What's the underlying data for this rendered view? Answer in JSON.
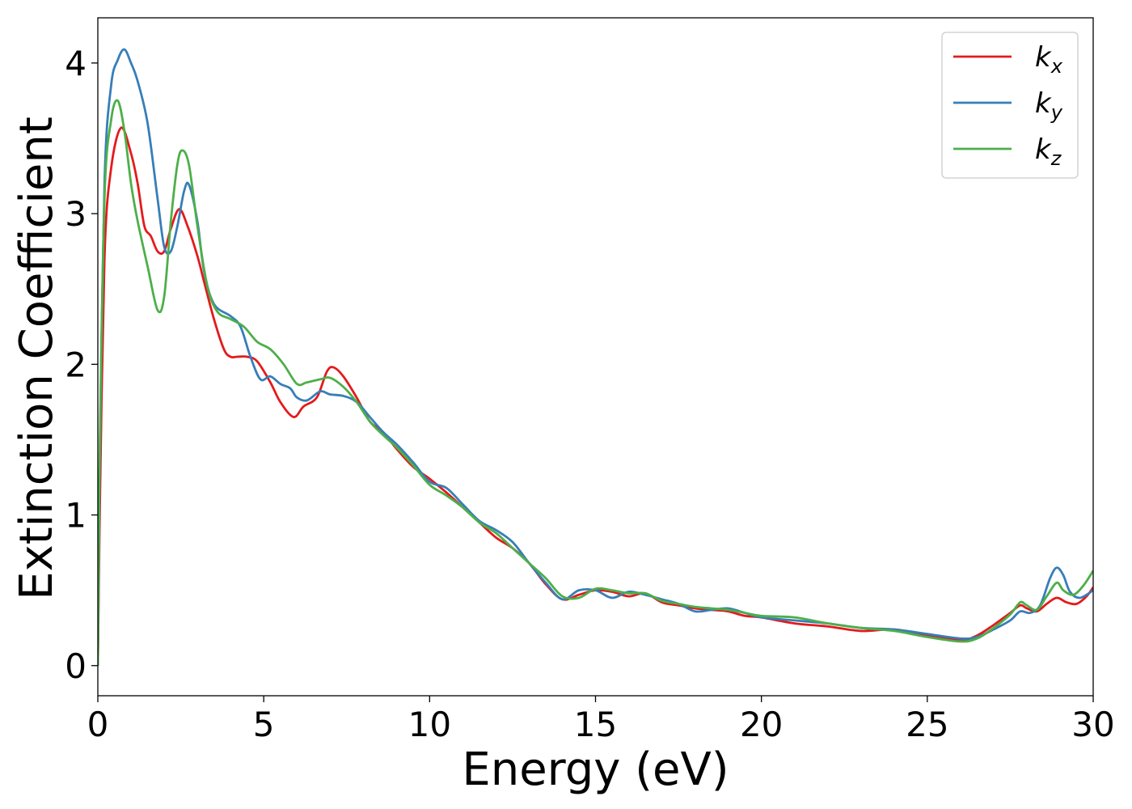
{
  "chart_data": {
    "type": "line",
    "xlabel": "Energy (eV)",
    "ylabel": "Extinction Coefficient",
    "xlim": [
      0,
      30
    ],
    "ylim": [
      -0.2,
      4.3
    ],
    "xticks": [
      "0",
      "5",
      "10",
      "15",
      "20",
      "25",
      "30"
    ],
    "yticks": [
      "0",
      "1",
      "2",
      "3",
      "4"
    ],
    "grid": false,
    "legend_position": "top-right",
    "series": [
      {
        "name": "k",
        "subscript": "x",
        "color": "#e41a1c",
        "x": [
          0,
          0.05,
          0.2,
          0.4,
          0.7,
          1.0,
          1.2,
          1.4,
          1.6,
          1.8,
          2.0,
          2.2,
          2.45,
          2.7,
          3.0,
          3.2,
          3.5,
          3.8,
          4.0,
          4.2,
          4.5,
          4.8,
          5.2,
          5.5,
          5.9,
          6.2,
          6.6,
          6.9,
          7.1,
          7.4,
          7.8,
          8.2,
          8.6,
          9.0,
          9.5,
          10.0,
          10.5,
          11.0,
          11.5,
          12.0,
          12.5,
          13.0,
          13.5,
          14.0,
          14.5,
          15.0,
          15.5,
          16.0,
          16.5,
          17.0,
          17.5,
          18.0,
          18.5,
          19.0,
          19.5,
          20.0,
          21.0,
          22.0,
          23.0,
          24.0,
          25.0,
          26.0,
          26.5,
          27.0,
          27.5,
          27.8,
          28.0,
          28.3,
          28.6,
          28.9,
          29.2,
          29.5,
          29.8,
          30.0
        ],
        "y": [
          0,
          0.9,
          2.7,
          3.3,
          3.57,
          3.4,
          3.2,
          2.92,
          2.85,
          2.75,
          2.75,
          2.9,
          3.03,
          2.92,
          2.72,
          2.55,
          2.3,
          2.1,
          2.05,
          2.05,
          2.05,
          2.02,
          1.88,
          1.75,
          1.65,
          1.72,
          1.78,
          1.95,
          1.98,
          1.92,
          1.78,
          1.62,
          1.55,
          1.44,
          1.32,
          1.24,
          1.15,
          1.05,
          0.95,
          0.85,
          0.78,
          0.68,
          0.54,
          0.44,
          0.47,
          0.5,
          0.49,
          0.46,
          0.48,
          0.42,
          0.4,
          0.38,
          0.37,
          0.36,
          0.33,
          0.32,
          0.28,
          0.26,
          0.23,
          0.24,
          0.2,
          0.17,
          0.2,
          0.27,
          0.35,
          0.4,
          0.38,
          0.36,
          0.41,
          0.45,
          0.42,
          0.41,
          0.46,
          0.52
        ]
      },
      {
        "name": "k",
        "subscript": "y",
        "color": "#377eb8",
        "x": [
          0,
          0.05,
          0.2,
          0.4,
          0.6,
          0.8,
          1.0,
          1.2,
          1.5,
          1.8,
          2.0,
          2.2,
          2.4,
          2.6,
          2.75,
          3.0,
          3.2,
          3.5,
          4.0,
          4.3,
          4.6,
          4.9,
          5.2,
          5.5,
          5.8,
          6.0,
          6.3,
          6.7,
          7.0,
          7.4,
          7.8,
          8.2,
          8.6,
          9.0,
          9.5,
          10.0,
          10.5,
          11.0,
          11.5,
          12.0,
          12.5,
          13.0,
          13.5,
          14.0,
          14.5,
          15.0,
          15.5,
          16.0,
          16.5,
          17.0,
          17.5,
          18.0,
          18.5,
          19.0,
          19.5,
          20.0,
          21.0,
          22.0,
          23.0,
          24.0,
          25.0,
          26.0,
          26.5,
          27.0,
          27.5,
          27.8,
          28.1,
          28.4,
          28.7,
          28.9,
          29.1,
          29.3,
          29.6,
          30.0
        ],
        "y": [
          0,
          1.2,
          3.2,
          3.85,
          4.02,
          4.09,
          4.0,
          3.88,
          3.6,
          3.1,
          2.78,
          2.75,
          2.92,
          3.15,
          3.19,
          2.95,
          2.62,
          2.4,
          2.32,
          2.25,
          2.05,
          1.9,
          1.92,
          1.87,
          1.84,
          1.78,
          1.76,
          1.82,
          1.8,
          1.79,
          1.75,
          1.65,
          1.55,
          1.47,
          1.35,
          1.22,
          1.18,
          1.07,
          0.96,
          0.9,
          0.82,
          0.68,
          0.55,
          0.44,
          0.5,
          0.5,
          0.45,
          0.49,
          0.47,
          0.44,
          0.41,
          0.36,
          0.37,
          0.38,
          0.35,
          0.32,
          0.3,
          0.28,
          0.25,
          0.24,
          0.21,
          0.18,
          0.19,
          0.24,
          0.3,
          0.36,
          0.35,
          0.4,
          0.58,
          0.65,
          0.6,
          0.49,
          0.45,
          0.5
        ]
      },
      {
        "name": "k",
        "subscript": "z",
        "color": "#4daf4a",
        "x": [
          0,
          0.05,
          0.2,
          0.4,
          0.6,
          0.8,
          1.0,
          1.2,
          1.5,
          1.8,
          2.0,
          2.2,
          2.4,
          2.55,
          2.75,
          3.0,
          3.3,
          3.6,
          4.0,
          4.4,
          4.8,
          5.2,
          5.6,
          6.0,
          6.3,
          6.7,
          7.0,
          7.4,
          7.8,
          8.2,
          8.6,
          9.0,
          9.5,
          10.0,
          10.5,
          11.0,
          11.5,
          12.0,
          12.5,
          13.0,
          13.5,
          14.0,
          14.5,
          15.0,
          15.5,
          16.0,
          16.5,
          17.0,
          17.5,
          18.0,
          18.5,
          19.0,
          19.5,
          20.0,
          21.0,
          22.0,
          23.0,
          24.0,
          25.0,
          26.0,
          26.5,
          27.0,
          27.5,
          27.8,
          28.0,
          28.3,
          28.6,
          28.9,
          29.1,
          29.4,
          29.7,
          30.0
        ],
        "y": [
          0,
          1.3,
          3.1,
          3.62,
          3.75,
          3.55,
          3.2,
          2.95,
          2.65,
          2.36,
          2.45,
          2.95,
          3.33,
          3.42,
          3.32,
          2.92,
          2.52,
          2.35,
          2.3,
          2.25,
          2.15,
          2.1,
          2.0,
          1.87,
          1.88,
          1.9,
          1.91,
          1.85,
          1.75,
          1.62,
          1.53,
          1.45,
          1.33,
          1.2,
          1.13,
          1.05,
          0.95,
          0.88,
          0.78,
          0.68,
          0.58,
          0.46,
          0.45,
          0.51,
          0.5,
          0.48,
          0.48,
          0.43,
          0.41,
          0.39,
          0.38,
          0.37,
          0.35,
          0.33,
          0.32,
          0.28,
          0.25,
          0.23,
          0.19,
          0.16,
          0.18,
          0.25,
          0.34,
          0.42,
          0.4,
          0.37,
          0.46,
          0.55,
          0.5,
          0.47,
          0.53,
          0.63
        ]
      }
    ]
  }
}
